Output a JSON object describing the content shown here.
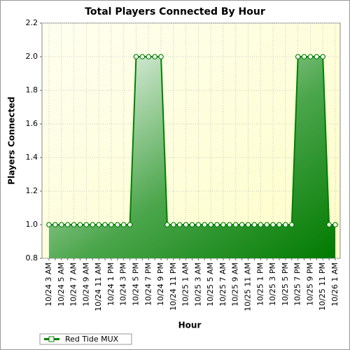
{
  "chart_data": {
    "type": "area",
    "title": "Total Players Connected By Hour",
    "x_label": "Hour",
    "y_label": "Players Connected",
    "categories": [
      "10/24 3 AM",
      null,
      "10/24 5 AM",
      null,
      "10/24 7 AM",
      null,
      "10/24 9 AM",
      null,
      "10/24 11 AM",
      null,
      "10/24 1 PM",
      null,
      "10/24 3 PM",
      null,
      "10/24 5 PM",
      null,
      "10/24 7 PM",
      null,
      "10/24 9 PM",
      null,
      "10/24 11 PM",
      null,
      "10/25 1 AM",
      null,
      "10/25 3 AM",
      null,
      "10/25 5 AM",
      null,
      "10/25 7 AM",
      null,
      "10/25 9 AM",
      null,
      "10/25 11 AM",
      null,
      "10/25 1 PM",
      null,
      "10/25 3 PM",
      null,
      "10/25 5 PM",
      null,
      "10/25 7 PM",
      null,
      "10/25 9 PM",
      null,
      "10/25 11 PM",
      null,
      "10/26 1 AM"
    ],
    "series": [
      {
        "name": "Red Tide MUX",
        "color": "#008000",
        "values": [
          1,
          1,
          1,
          1,
          1,
          1,
          1,
          1,
          1,
          1,
          1,
          1,
          1,
          1,
          2,
          2,
          2,
          2,
          2,
          1,
          1,
          1,
          1,
          1,
          1,
          1,
          1,
          1,
          1,
          1,
          1,
          1,
          1,
          1,
          1,
          1,
          1,
          1,
          1,
          1,
          2,
          2,
          2,
          2,
          2,
          1,
          1
        ]
      }
    ],
    "ylim": [
      0.8,
      2.2
    ],
    "yticks": [
      0.8,
      {
        "value": 1,
        "label": "1.0"
      },
      1.2,
      1.4,
      1.6,
      1.8,
      {
        "value": 2,
        "label": "2.0"
      },
      2.2
    ],
    "grid": true
  }
}
